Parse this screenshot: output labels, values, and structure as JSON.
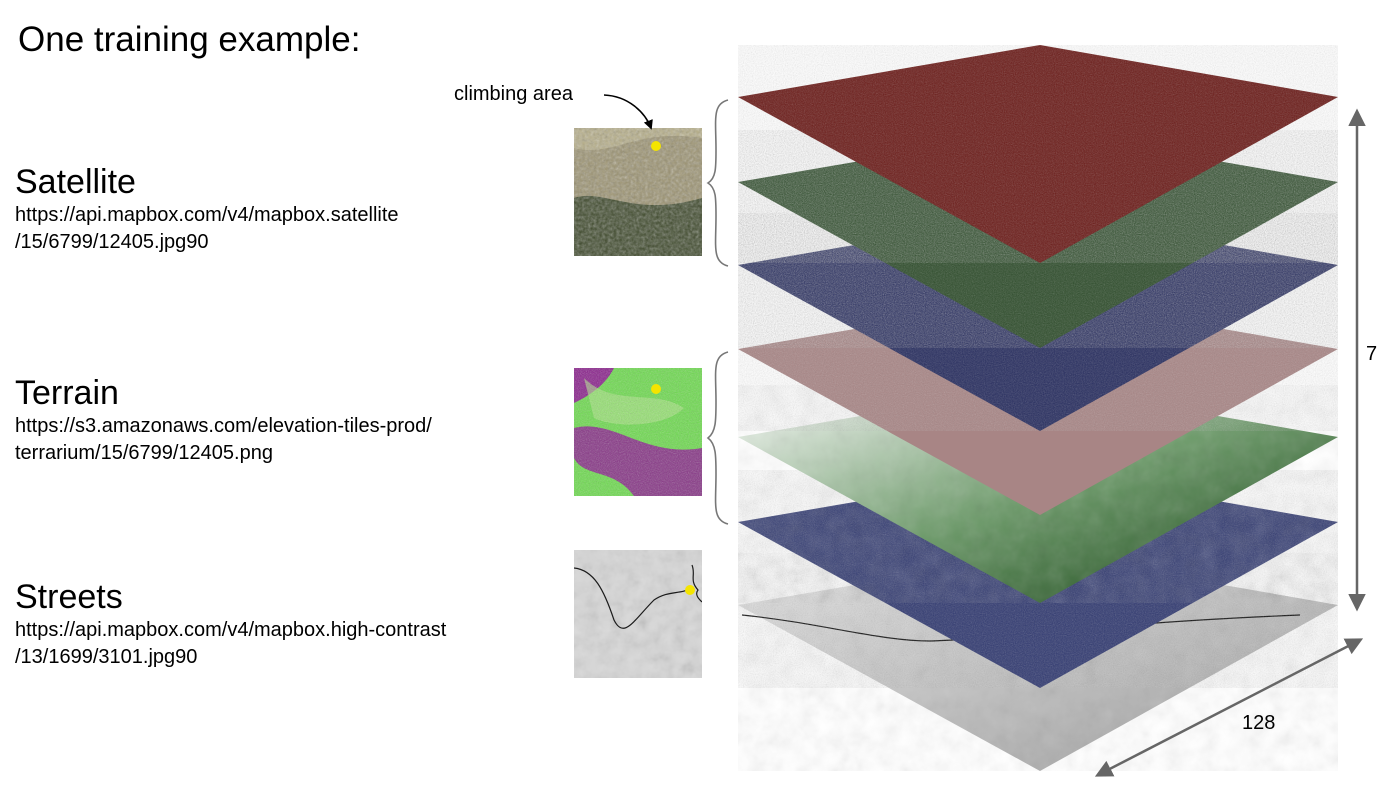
{
  "title": "One training example:",
  "callout_label": "climbing area",
  "sources": [
    {
      "name": "Satellite",
      "url_line1": "https://api.mapbox.com/v4/mapbox.satellite",
      "url_line2": "/15/6799/12405.jpg90"
    },
    {
      "name": "Terrain",
      "url_line1": "https://s3.amazonaws.com/elevation-tiles-prod/",
      "url_line2": "terrarium/15/6799/12405.png"
    },
    {
      "name": "Streets",
      "url_line1": "https://api.mapbox.com/v4/mapbox.high-contrast",
      "url_line2": "/13/1699/3101.jpg90"
    }
  ],
  "thumbnails": [
    {
      "name": "satellite-thumbnail",
      "colors": [
        "#9c9371",
        "#3f4a2c",
        "#c8bf98"
      ]
    },
    {
      "name": "terrain-thumbnail",
      "colors": [
        "#6cdc4c",
        "#8a1f8c",
        "#b1e68a"
      ]
    },
    {
      "name": "streets-thumbnail",
      "colors": [
        "#d7d7d7",
        "#a9a9a9",
        "#1b1b1b"
      ]
    }
  ],
  "marker_color": "#f4e400",
  "layers": [
    {
      "name": "satellite-red-channel",
      "color": "#6b1a17"
    },
    {
      "name": "satellite-green-channel",
      "color": "#2d4c2a"
    },
    {
      "name": "satellite-blue-channel",
      "color": "#252b5e"
    },
    {
      "name": "terrain-red-channel",
      "color": "#a88585"
    },
    {
      "name": "terrain-green-channel",
      "color": "#2d5a2b"
    },
    {
      "name": "terrain-blue-channel",
      "color": "#2f3870"
    },
    {
      "name": "streets-channel",
      "color": "#cfcfcf"
    }
  ],
  "depth_label": "7",
  "width_label": "128",
  "arrow_color": "#666666"
}
